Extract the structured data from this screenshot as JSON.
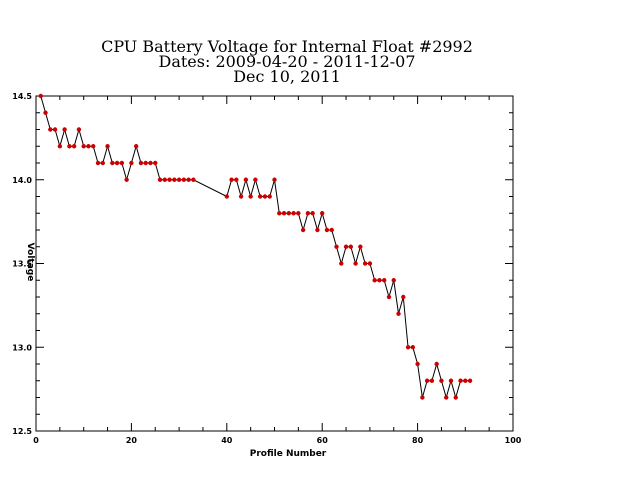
{
  "chart_data": {
    "type": "line",
    "title_lines": [
      "CPU Battery Voltage for Internal Float #2992",
      "Dates:  2009-04-20 -  2011-12-07",
      "Dec 10, 2011"
    ],
    "xlabel": "Profile Number",
    "ylabel": "Voltage",
    "xlim": [
      0,
      100
    ],
    "ylim": [
      12.5,
      14.5
    ],
    "x_ticks": [
      0,
      20,
      40,
      60,
      80,
      100
    ],
    "y_ticks": [
      12.5,
      13.0,
      13.5,
      14.0,
      14.5
    ],
    "x_tick_labels": [
      "0",
      "20",
      "40",
      "60",
      "80",
      "100"
    ],
    "y_tick_labels": [
      "12.5",
      "13.0",
      "13.5",
      "14.0",
      "14.5"
    ],
    "line_color": "#000000",
    "marker_color": "#cc0000",
    "series": [
      {
        "x": [
          1,
          2,
          3,
          4,
          5,
          6,
          7,
          8,
          9,
          10,
          11,
          12,
          13,
          14,
          15,
          16,
          17,
          18,
          19,
          20,
          21,
          22,
          23,
          24,
          25,
          26,
          27,
          28,
          29,
          30,
          31,
          32,
          33,
          40,
          41,
          42,
          43,
          44,
          45,
          46,
          47,
          48,
          49,
          50,
          51,
          52,
          53,
          54,
          55,
          56,
          57,
          58,
          59,
          60,
          61,
          62,
          63,
          64,
          65,
          66,
          67,
          68,
          69,
          70,
          71,
          72,
          73,
          74,
          75,
          76,
          77,
          78,
          79,
          80,
          81,
          82,
          83,
          84,
          85,
          86,
          87,
          88,
          89,
          90,
          91
        ],
        "y": [
          14.5,
          14.4,
          14.3,
          14.3,
          14.2,
          14.3,
          14.2,
          14.2,
          14.3,
          14.2,
          14.2,
          14.2,
          14.1,
          14.1,
          14.2,
          14.1,
          14.1,
          14.1,
          14.0,
          14.1,
          14.2,
          14.1,
          14.1,
          14.1,
          14.1,
          14.0,
          14.0,
          14.0,
          14.0,
          14.0,
          14.0,
          14.0,
          14.0,
          13.9,
          14.0,
          14.0,
          13.9,
          14.0,
          13.9,
          14.0,
          13.9,
          13.9,
          13.9,
          14.0,
          13.8,
          13.8,
          13.8,
          13.8,
          13.8,
          13.7,
          13.8,
          13.8,
          13.7,
          13.8,
          13.7,
          13.7,
          13.6,
          13.5,
          13.6,
          13.6,
          13.5,
          13.6,
          13.5,
          13.5,
          13.4,
          13.4,
          13.4,
          13.3,
          13.4,
          13.2,
          13.3,
          13.0,
          13.0,
          12.9,
          12.7,
          12.8,
          12.8,
          12.9,
          12.8,
          12.7,
          12.8,
          12.7,
          12.8,
          12.8,
          12.8
        ]
      }
    ]
  }
}
